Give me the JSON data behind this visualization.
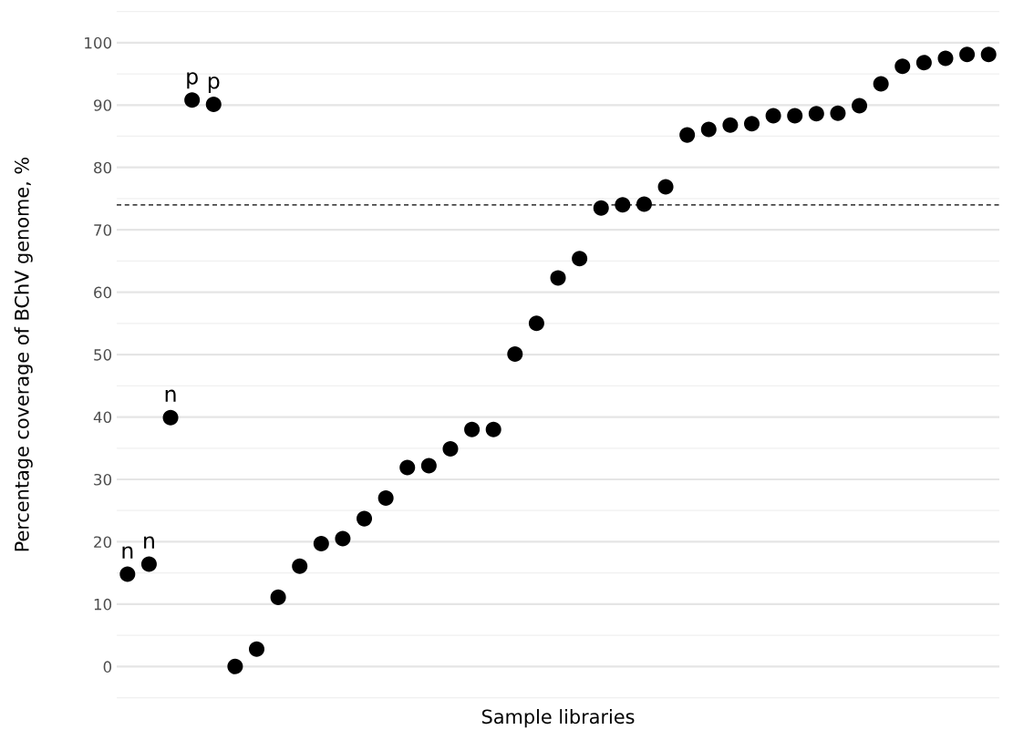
{
  "chart_data": {
    "type": "scatter",
    "xlabel": "Sample libraries",
    "ylabel": "Percentage coverage of BChV genome, %",
    "categories": [
      null,
      null,
      null,
      null,
      null,
      null,
      null,
      null,
      null,
      null,
      null,
      null,
      null,
      null,
      null,
      null,
      null,
      null,
      null,
      null,
      null,
      null,
      null,
      null,
      null,
      null,
      null,
      null,
      null,
      null,
      null,
      null,
      null,
      null,
      null,
      null,
      null,
      null,
      null,
      null,
      null
    ],
    "values": [
      14.8,
      16.4,
      39.9,
      90.8,
      90.1,
      0,
      2.8,
      11.1,
      16.1,
      19.7,
      20.5,
      23.7,
      27.0,
      31.9,
      32.2,
      34.9,
      38.0,
      38.0,
      50.1,
      55.0,
      62.3,
      65.4,
      73.5,
      74.0,
      74.1,
      76.9,
      85.2,
      86.1,
      86.8,
      87.0,
      88.3,
      88.3,
      88.6,
      88.7,
      89.9,
      93.4,
      96.2,
      96.8,
      97.5,
      98.1,
      98.1
    ],
    "value_labels": [
      "n",
      "n",
      "n",
      "p",
      "p",
      null,
      null,
      null,
      null,
      null,
      null,
      null,
      null,
      null,
      null,
      null,
      null,
      null,
      null,
      null,
      null,
      null,
      null,
      null,
      null,
      null,
      null,
      null,
      null,
      null,
      null,
      null,
      null,
      null,
      null,
      null,
      null,
      null,
      null,
      null,
      null
    ],
    "color": "#000000",
    "marker": "circle",
    "ylim": [
      -5.2,
      105.2
    ],
    "yticks": [
      0,
      10,
      20,
      30,
      40,
      50,
      60,
      70,
      80,
      90,
      100
    ],
    "ref_lines": [
      {
        "axis": "y",
        "value": 74.0,
        "line_style": "dashed",
        "color": "#000000"
      }
    ],
    "grid": "y",
    "tick_labels": "y"
  }
}
